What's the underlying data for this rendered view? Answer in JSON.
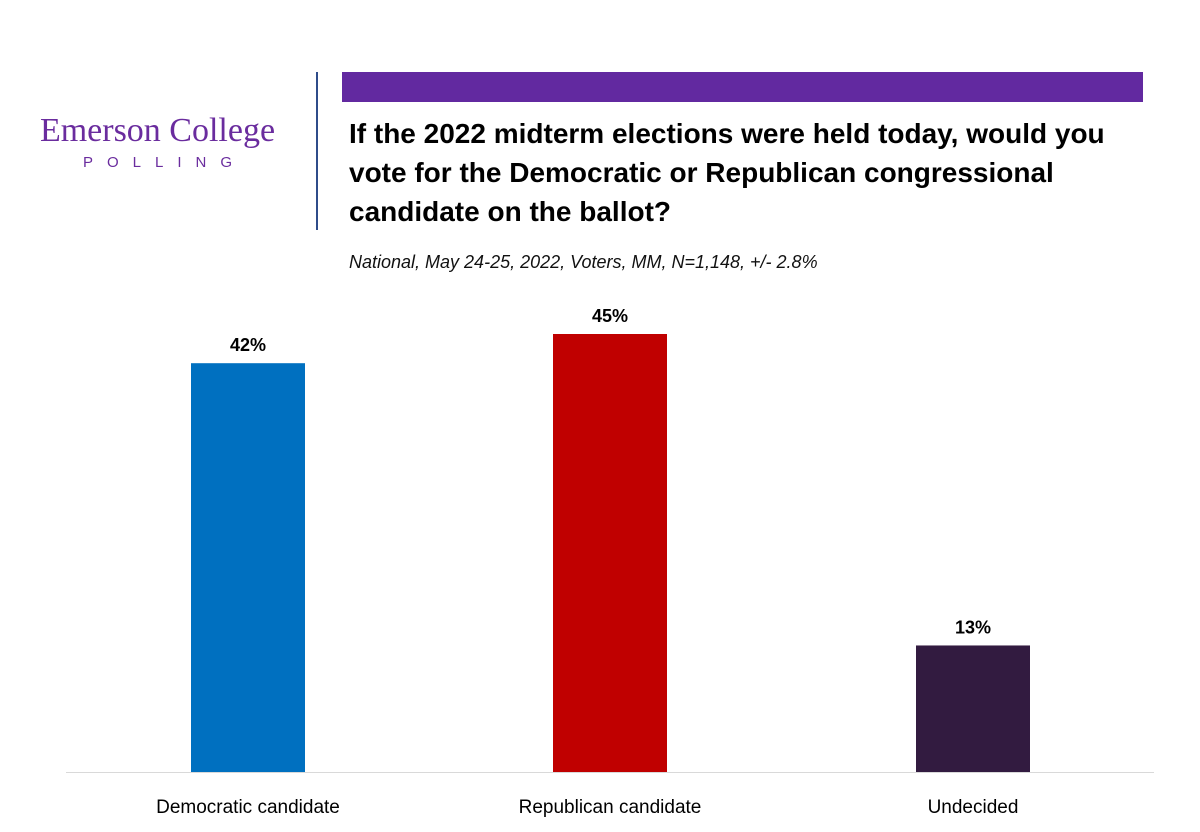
{
  "logo": {
    "name": "Emerson College",
    "sub": "POLLING"
  },
  "colors": {
    "accent": "#6229a0",
    "logo": "#6a2c9e",
    "divider": "#2f4c8a",
    "axis": "#d9d9d9"
  },
  "chart_data": {
    "type": "bar",
    "title": "If the 2022 midterm elections were held today, would you vote for the Democratic or Republican congressional candidate on the ballot?",
    "subtitle": "National, May 24-25, 2022, Voters, MM, N=1,148, +/- 2.8%",
    "categories": [
      "Democratic candidate",
      "Republican candidate",
      "Undecided"
    ],
    "values": [
      42,
      45,
      13
    ],
    "value_labels": [
      "42%",
      "45%",
      "13%"
    ],
    "bar_colors": [
      "#0070c0",
      "#c00000",
      "#321b40"
    ],
    "ylim": [
      0,
      45
    ],
    "xlabel": "",
    "ylabel": "",
    "grid": false,
    "legend": "none"
  }
}
